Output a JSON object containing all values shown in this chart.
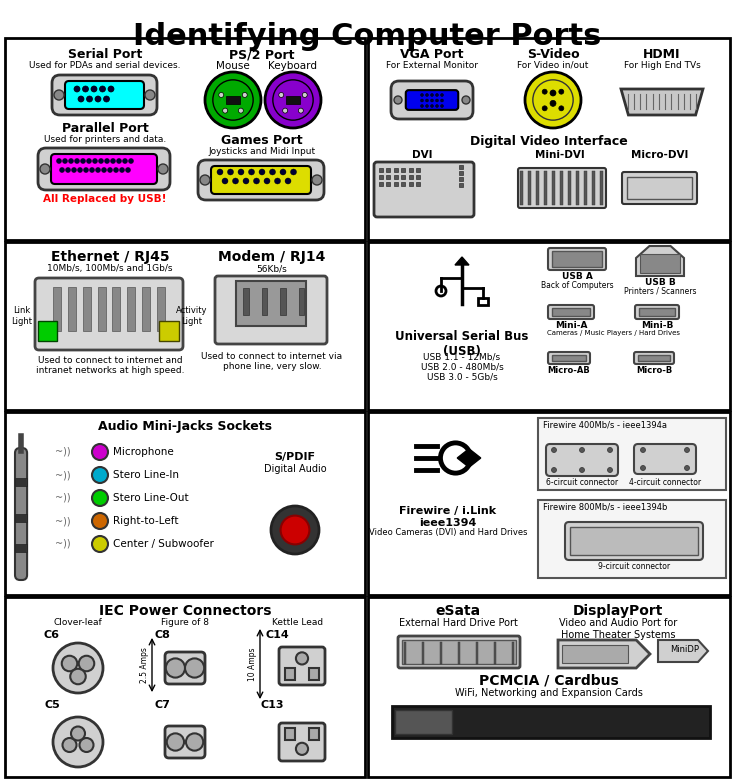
{
  "title": "Identifying Computer Ports",
  "bg_color": "#ffffff",
  "title_fontsize": 22,
  "sections": {
    "top_left": {
      "serial_port": {
        "title": "Serial Port",
        "desc": "Used for PDAs and serial devices.",
        "color": "#00ffff"
      },
      "parallel_port": {
        "title": "Parallel Port",
        "desc": "Used for printers and data.",
        "color": "#ff00ff"
      },
      "ps2": {
        "title": "PS/2 Port",
        "mouse": "Mouse",
        "keyboard": "Keyboard",
        "color_mouse": "#00aa00",
        "color_keyboard": "#8800cc"
      },
      "games": {
        "title": "Games Port",
        "desc": "Joysticks and Midi Input",
        "color": "#dddd00"
      },
      "replaced": "All Replaced by USB!"
    },
    "top_right": {
      "vga": {
        "title": "VGA Port",
        "desc": "For External Monitor",
        "color": "#0000ee"
      },
      "svideo": {
        "title": "S-Video",
        "desc": "For Video in/out",
        "color": "#dddd00"
      },
      "hdmi": {
        "title": "HDMI",
        "desc": "For High End TVs"
      },
      "dvi_title": "Digital Video Interface",
      "dvi": "DVI",
      "minidvi": "Mini-DVI",
      "microdvi": "Micro-DVI"
    },
    "mid_left": {
      "ethernet": {
        "title": "Ethernet / RJ45",
        "desc": "10Mb/s, 100Mb/s and 1Gb/s",
        "desc2": "Used to connect to internet and\nintranet networks at high speed."
      },
      "modem": {
        "title": "Modem / RJ14",
        "desc": "56Kb/s",
        "desc2": "Used to connect to internet via\nphone line, very slow."
      },
      "link": "Link\nLight",
      "activity": "Activity\nLight"
    },
    "mid_right": {
      "usb_title": "Universal Serial Bus\n(USB)",
      "usb_desc": "USB 1.1 - 12Mb/s\nUSB 2.0 - 480Mb/s\nUSB 3.0 - 5Gb/s",
      "usba": "USB A",
      "usba_desc": "Back of Computers",
      "usbb": "USB B",
      "usbb_desc": "Printers / Scanners",
      "minia": "Mini-A",
      "minib": "Mini-B",
      "mini_desc": "Cameras / Music Players / Hard Drives",
      "microab": "Micro-AB",
      "microb": "Micro-B"
    },
    "lower_left": {
      "title": "Audio Mini-Jacks Sockets",
      "items": [
        {
          "label": "Microphone",
          "color": "#cc00cc"
        },
        {
          "label": "Stero Line-In",
          "color": "#00aacc"
        },
        {
          "label": "Stero Line-Out",
          "color": "#00cc00"
        },
        {
          "label": "Right-to-Left",
          "color": "#cc6600"
        },
        {
          "label": "Center / Subwoofer",
          "color": "#cccc00"
        }
      ],
      "spdif_title": "S/PDIF",
      "spdif_desc": "Digital Audio"
    },
    "lower_right": {
      "fw_title": "Firewire / i.Link\nieee1394",
      "fw_desc": "Video Cameras (DVI) and Hard Drives",
      "fw400": "Firewire 400Mb/s - ieee1394a",
      "fw400_6": "6-circuit connector",
      "fw400_4": "4-circuit connector",
      "fw800": "Firewire 800Mb/s - ieee1394b",
      "fw800_9": "9-circuit connector"
    },
    "bottom_left": {
      "title": "IEC Power Connectors",
      "clover": "Clover-leaf",
      "fig8": "Figure of 8",
      "kettle": "Kettle Lead",
      "amps25": "2.5 Amps",
      "amps10": "10 Amps"
    },
    "bottom_right": {
      "esata_title": "eSata",
      "esata_desc": "External Hard Drive Port",
      "dp_title": "DisplayPort",
      "dp_desc": "Video and Audio Port for\nHome Theater Systems",
      "minidp": "MiniDP",
      "pcmcia_title": "PCMCIA / Cardbus",
      "pcmcia_desc": "WiFi, Networking and Expansion Cards"
    }
  }
}
